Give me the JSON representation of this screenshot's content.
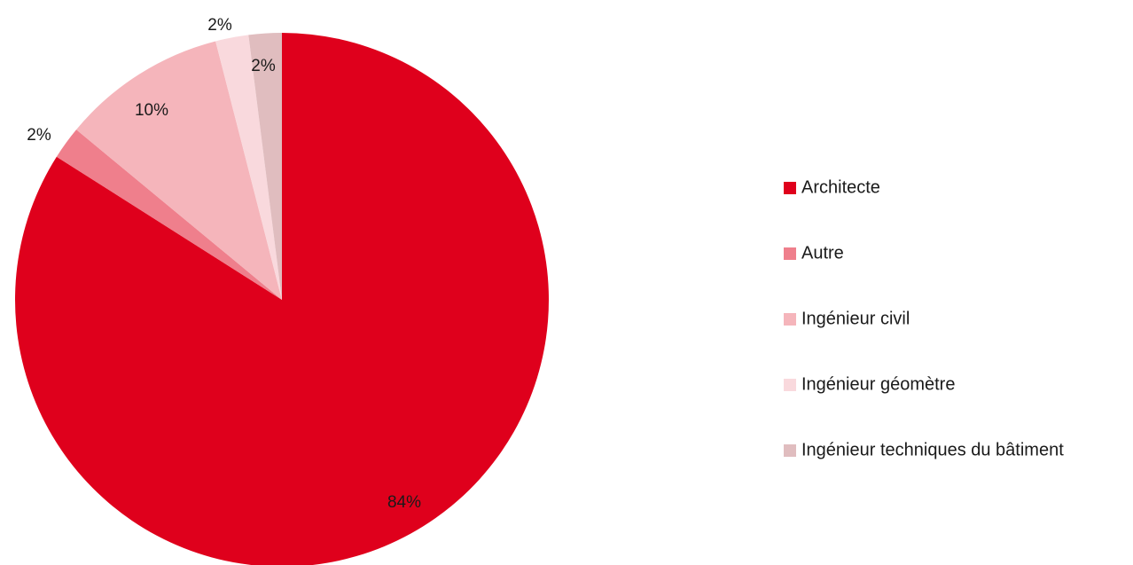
{
  "chart_data": {
    "type": "pie",
    "start_angle_deg": 0,
    "direction": "clockwise",
    "legend_position": "right",
    "slices": [
      {
        "label": "Architecte",
        "value": 84,
        "display": "84%",
        "color": "#df001c"
      },
      {
        "label": "Autre",
        "value": 2,
        "display": "2%",
        "color": "#ef7f8c"
      },
      {
        "label": "Ingénieur civil",
        "value": 10,
        "display": "10%",
        "color": "#f5b5bb"
      },
      {
        "label": "Ingénieur géomètre",
        "value": 2,
        "display": "2%",
        "color": "#f9d9dd"
      },
      {
        "label": "Ingénieur techniques du bâtiment",
        "value": 2,
        "display": "2%",
        "color": "#e0bdbf"
      }
    ]
  }
}
